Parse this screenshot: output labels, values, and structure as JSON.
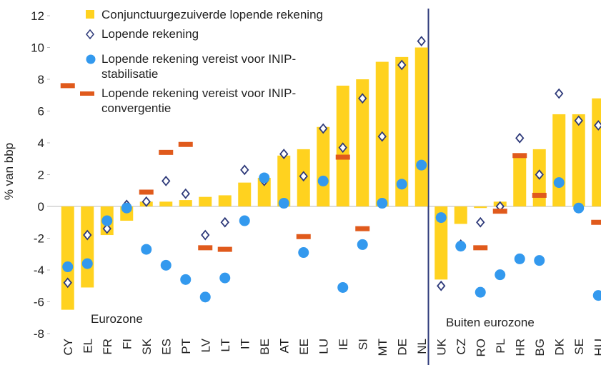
{
  "chart_data": {
    "type": "combo",
    "y_label": "% van bbp",
    "annotations": [
      "Eurozone",
      "Buiten eurozone"
    ],
    "categories": [
      "CY",
      "EL",
      "FR",
      "FI",
      "SK",
      "ES",
      "PT",
      "LV",
      "LT",
      "IT",
      "BE",
      "AT",
      "EE",
      "LU",
      "IE",
      "SI",
      "MT",
      "DE",
      "NL",
      "UK",
      "CZ",
      "RO",
      "PL",
      "HR",
      "BG",
      "DK",
      "SE",
      "HU"
    ],
    "ylim": [
      -8,
      12
    ],
    "yticks": [
      -8,
      -6,
      -4,
      -2,
      0,
      2,
      4,
      6,
      8,
      10,
      12
    ],
    "series": [
      {
        "name": "Conjunctuurgezuiverde lopende rekening",
        "kind": "bar",
        "color": "#ffd21f",
        "values": [
          -6.5,
          -5.1,
          -1.8,
          -0.9,
          0.3,
          0.3,
          0.4,
          0.6,
          0.7,
          1.5,
          1.8,
          3.2,
          3.6,
          5.0,
          7.6,
          8.0,
          9.1,
          9.4,
          10.0,
          -4.6,
          -1.1,
          -0.1,
          0.3,
          3.2,
          3.6,
          5.8,
          5.8,
          6.8
        ]
      },
      {
        "name": "Lopende rekening",
        "kind": "diamond",
        "color": "#2e3a7a",
        "values": [
          -4.8,
          -1.8,
          -1.4,
          0.1,
          0.3,
          1.6,
          0.8,
          -1.8,
          -1.0,
          2.3,
          1.6,
          3.3,
          1.9,
          4.9,
          3.7,
          6.8,
          4.4,
          8.9,
          10.4,
          -5.0,
          -2.4,
          -1.0,
          0.0,
          4.3,
          2.0,
          7.1,
          5.4,
          5.1
        ]
      },
      {
        "name": "Lopende rekening vereist voor INIP-stabilisatie",
        "kind": "circle",
        "color": "#3399ee",
        "values": [
          -3.8,
          -3.6,
          -0.9,
          -0.1,
          -2.7,
          -3.7,
          -4.6,
          -5.7,
          -4.5,
          -0.9,
          1.8,
          0.2,
          -2.9,
          1.6,
          -5.1,
          -2.4,
          0.2,
          1.4,
          2.6,
          -0.7,
          -2.5,
          -5.4,
          -4.3,
          -3.3,
          -3.4,
          1.5,
          -0.1,
          -5.6
        ]
      },
      {
        "name": "Lopende rekening vereist voor INIP-convergentie",
        "kind": "dash",
        "color": "#e05a1c",
        "values": [
          7.6,
          null,
          null,
          null,
          0.9,
          3.4,
          3.9,
          -2.6,
          -2.7,
          null,
          null,
          null,
          -1.9,
          null,
          3.1,
          -1.4,
          null,
          null,
          null,
          null,
          null,
          -2.6,
          -0.3,
          3.2,
          0.7,
          null,
          null,
          -1.0
        ]
      }
    ]
  }
}
